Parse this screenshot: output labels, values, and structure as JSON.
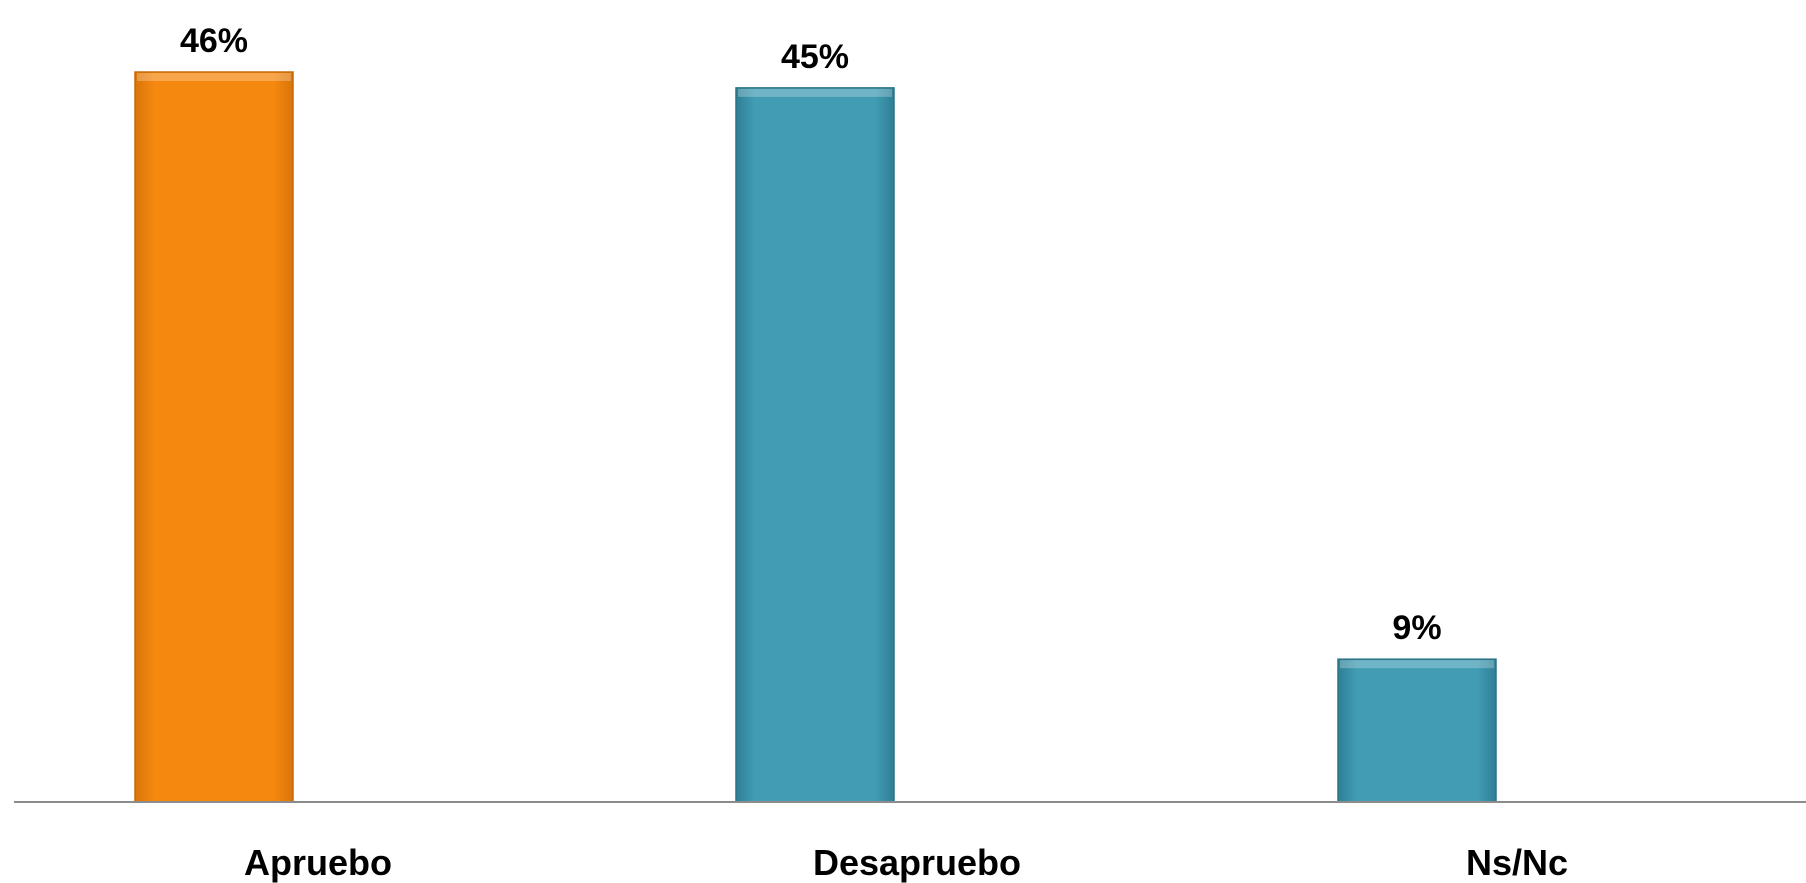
{
  "chart_data": {
    "type": "bar",
    "categories": [
      "Apruebo",
      "Desapruebo",
      "Ns/Nc"
    ],
    "values": [
      46,
      45,
      9
    ],
    "value_labels": [
      "46%",
      "45%",
      "9%"
    ],
    "unit": "%",
    "ylim": [
      0,
      46
    ],
    "grid": false,
    "legend": "none",
    "colors": {
      "Apruebo": "#F5880F",
      "Desapruebo": "#419CB4",
      "Ns/Nc": "#419CB4"
    }
  }
}
